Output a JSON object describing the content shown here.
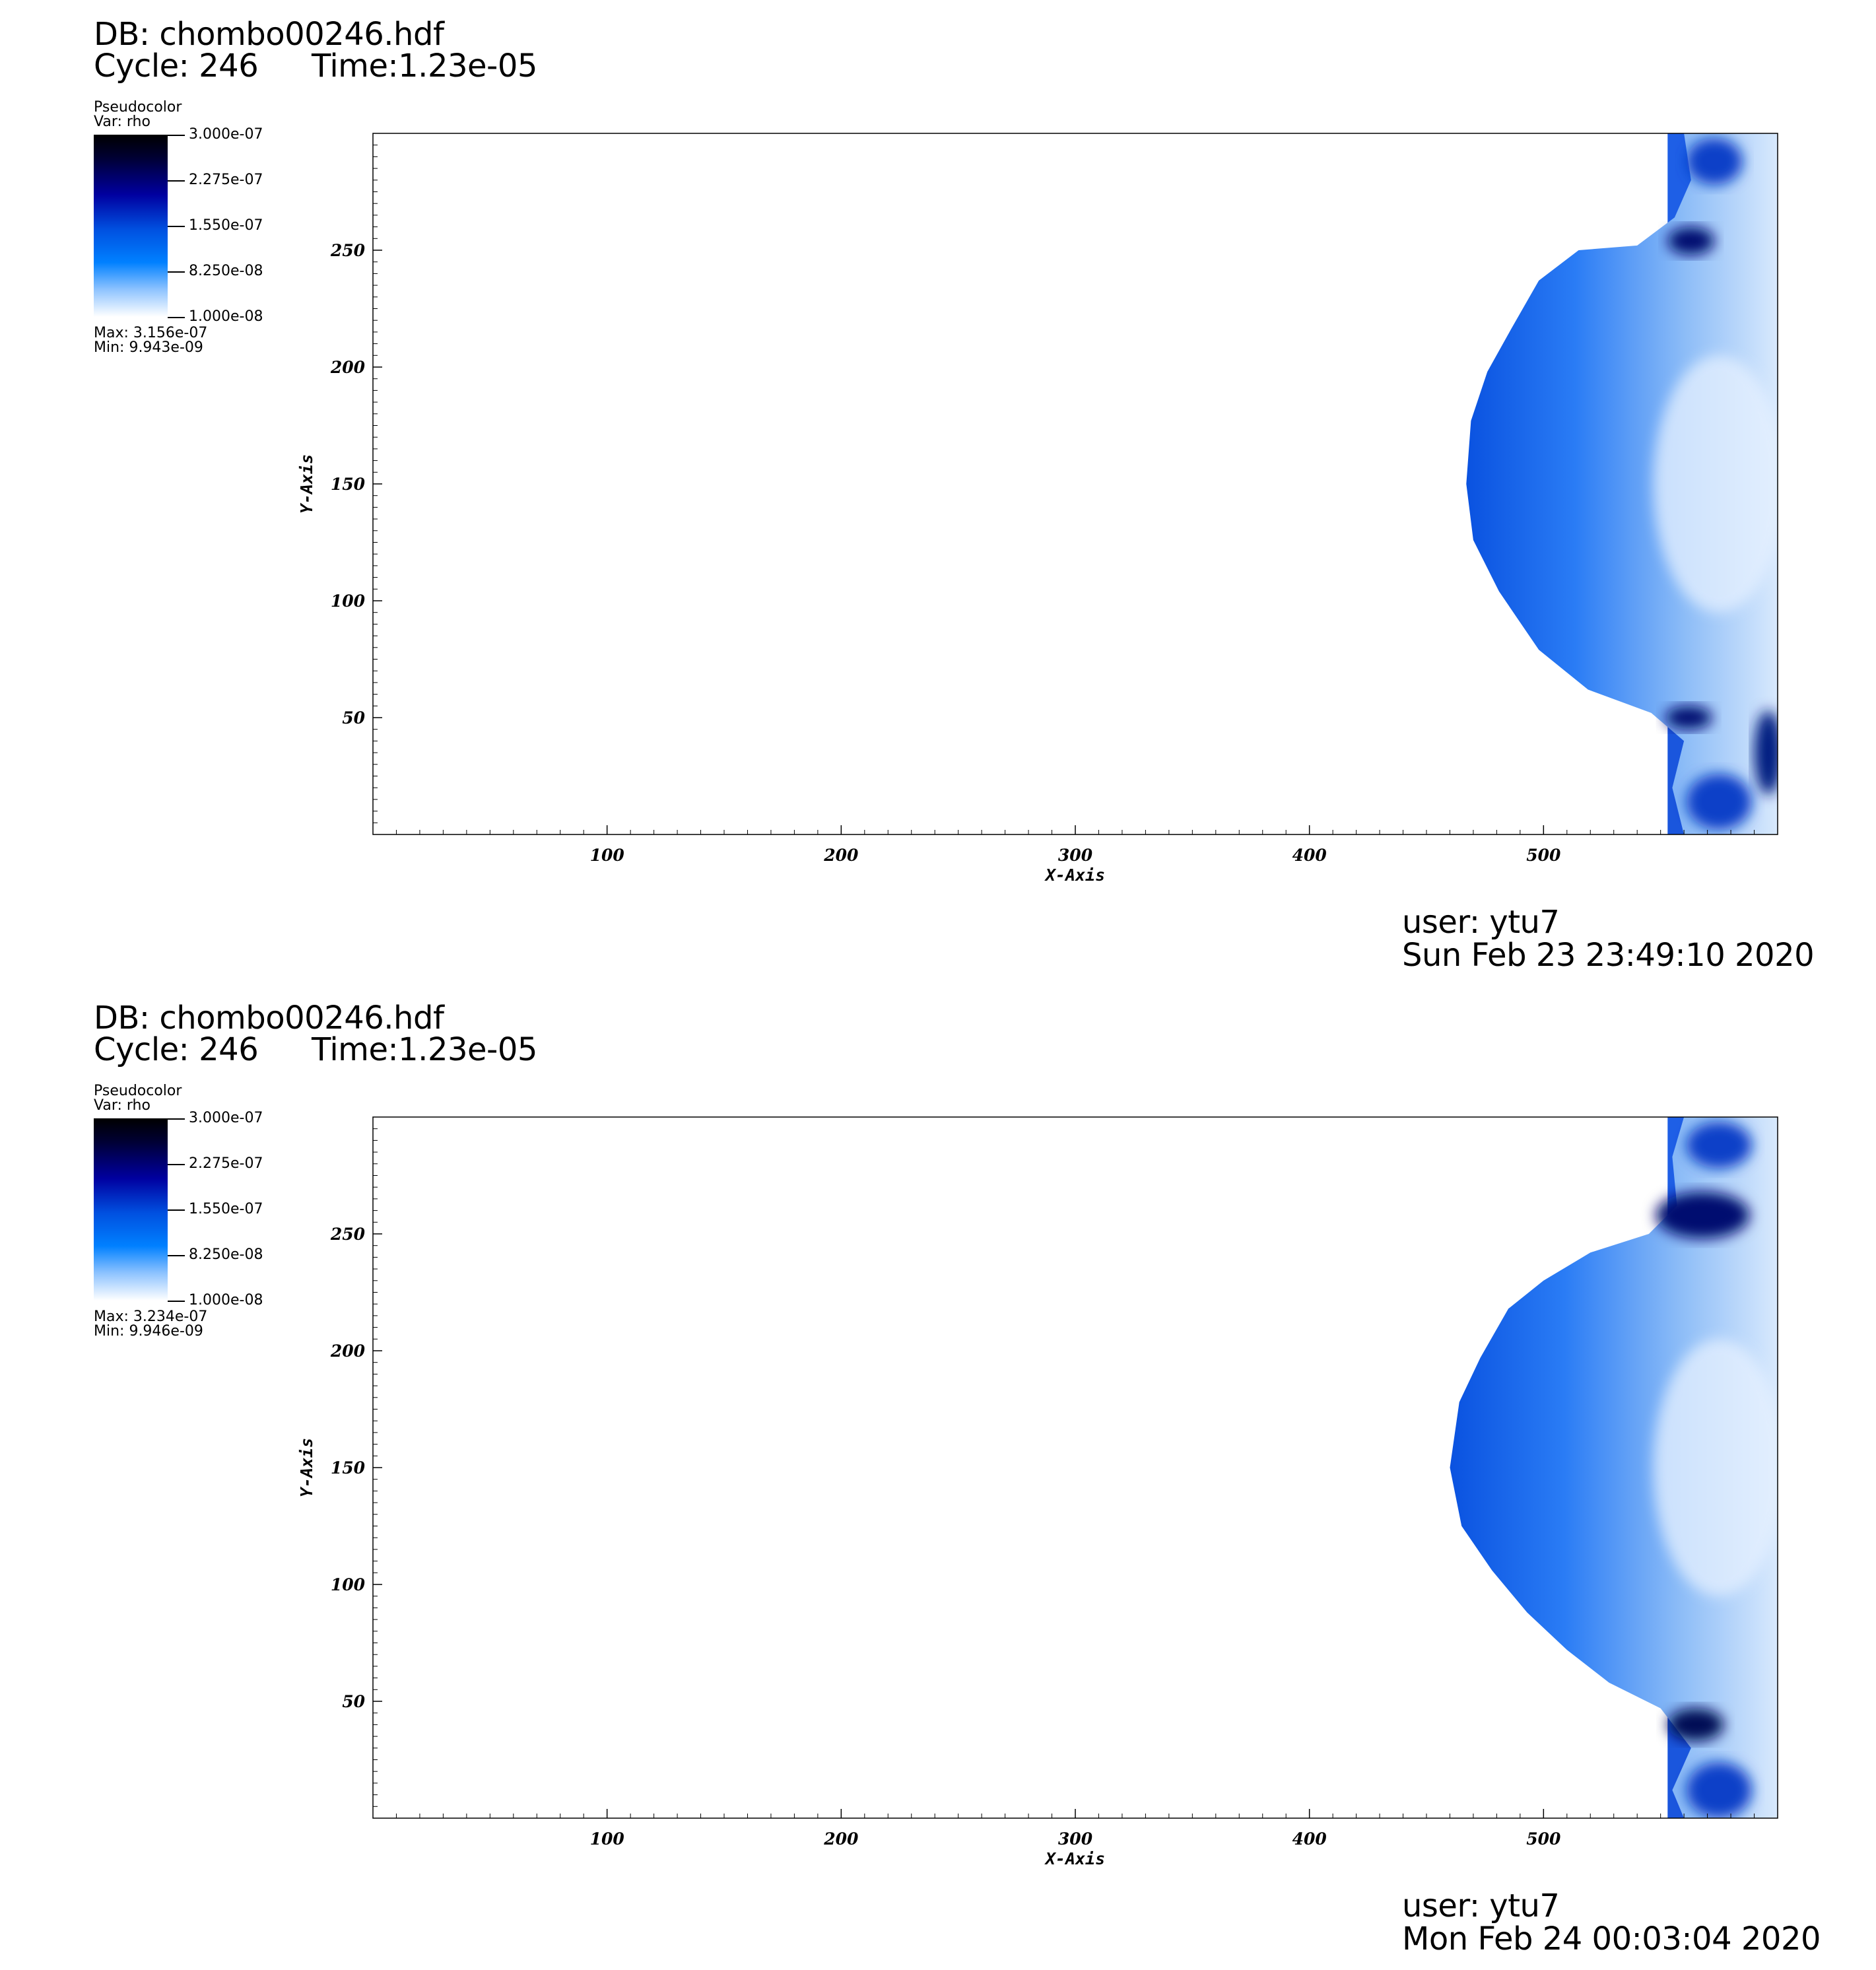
{
  "panels": [
    {
      "db_label": "DB: chombo00246.hdf",
      "cycle_label": "Cycle: 246",
      "time_label": "Time:1.23e-05",
      "legend": {
        "title": "Pseudocolor",
        "var": "Var: rho",
        "ticks": [
          "3.000e-07",
          "2.275e-07",
          "1.550e-07",
          "8.250e-08",
          "1.000e-08"
        ],
        "max": "Max:  3.156e-07",
        "min": "Min:  9.943e-09"
      },
      "user": "user: ytu7",
      "date": "Sun Feb 23 23:49:10 2020"
    },
    {
      "db_label": "DB: chombo00246.hdf",
      "cycle_label": "Cycle: 246",
      "time_label": "Time:1.23e-05",
      "legend": {
        "title": "Pseudocolor",
        "var": "Var: rho",
        "ticks": [
          "3.000e-07",
          "2.275e-07",
          "1.550e-07",
          "8.250e-08",
          "1.000e-08"
        ],
        "max": "Max:  3.234e-07",
        "min": "Min:  9.946e-09"
      },
      "user": "user: ytu7",
      "date": "Mon Feb 24 00:03:04 2020"
    }
  ],
  "chart_data": [
    {
      "type": "heatmap",
      "variable": "rho",
      "xlabel": "X-Axis",
      "ylabel": "Y-Axis",
      "xlim": [
        0,
        600
      ],
      "ylim": [
        0,
        300
      ],
      "x_ticks": [
        100,
        200,
        300,
        400,
        500
      ],
      "y_ticks": [
        50,
        100,
        150,
        200,
        250
      ],
      "color_range": [
        1e-08,
        3e-07
      ],
      "colormap": [
        "#ffffff",
        "#0080ff",
        "#0000a0",
        "#000000"
      ],
      "front": [
        [
          560,
          300
        ],
        [
          563,
          280
        ],
        [
          556,
          264
        ],
        [
          540,
          252
        ],
        [
          515,
          250
        ],
        [
          498,
          237
        ],
        [
          486,
          216
        ],
        [
          476,
          198
        ],
        [
          469,
          177
        ],
        [
          467,
          150
        ],
        [
          470,
          126
        ],
        [
          481,
          104
        ],
        [
          498,
          79
        ],
        [
          519,
          62
        ],
        [
          546,
          52
        ],
        [
          560,
          40
        ],
        [
          555,
          20
        ],
        [
          560,
          0
        ]
      ]
    },
    {
      "type": "heatmap",
      "variable": "rho",
      "xlabel": "X-Axis",
      "ylabel": "Y-Axis",
      "xlim": [
        0,
        600
      ],
      "ylim": [
        0,
        300
      ],
      "x_ticks": [
        100,
        200,
        300,
        400,
        500
      ],
      "y_ticks": [
        50,
        100,
        150,
        200,
        250
      ],
      "color_range": [
        1e-08,
        3e-07
      ],
      "colormap": [
        "#ffffff",
        "#0080ff",
        "#0000a0",
        "#000000"
      ],
      "front": [
        [
          560,
          300
        ],
        [
          555,
          283
        ],
        [
          557,
          262
        ],
        [
          545,
          250
        ],
        [
          520,
          242
        ],
        [
          500,
          230
        ],
        [
          485,
          218
        ],
        [
          473,
          197
        ],
        [
          464,
          178
        ],
        [
          460,
          150
        ],
        [
          465,
          125
        ],
        [
          478,
          106
        ],
        [
          493,
          88
        ],
        [
          510,
          72
        ],
        [
          528,
          58
        ],
        [
          550,
          47
        ],
        [
          563,
          30
        ],
        [
          555,
          12
        ],
        [
          560,
          0
        ]
      ]
    }
  ]
}
